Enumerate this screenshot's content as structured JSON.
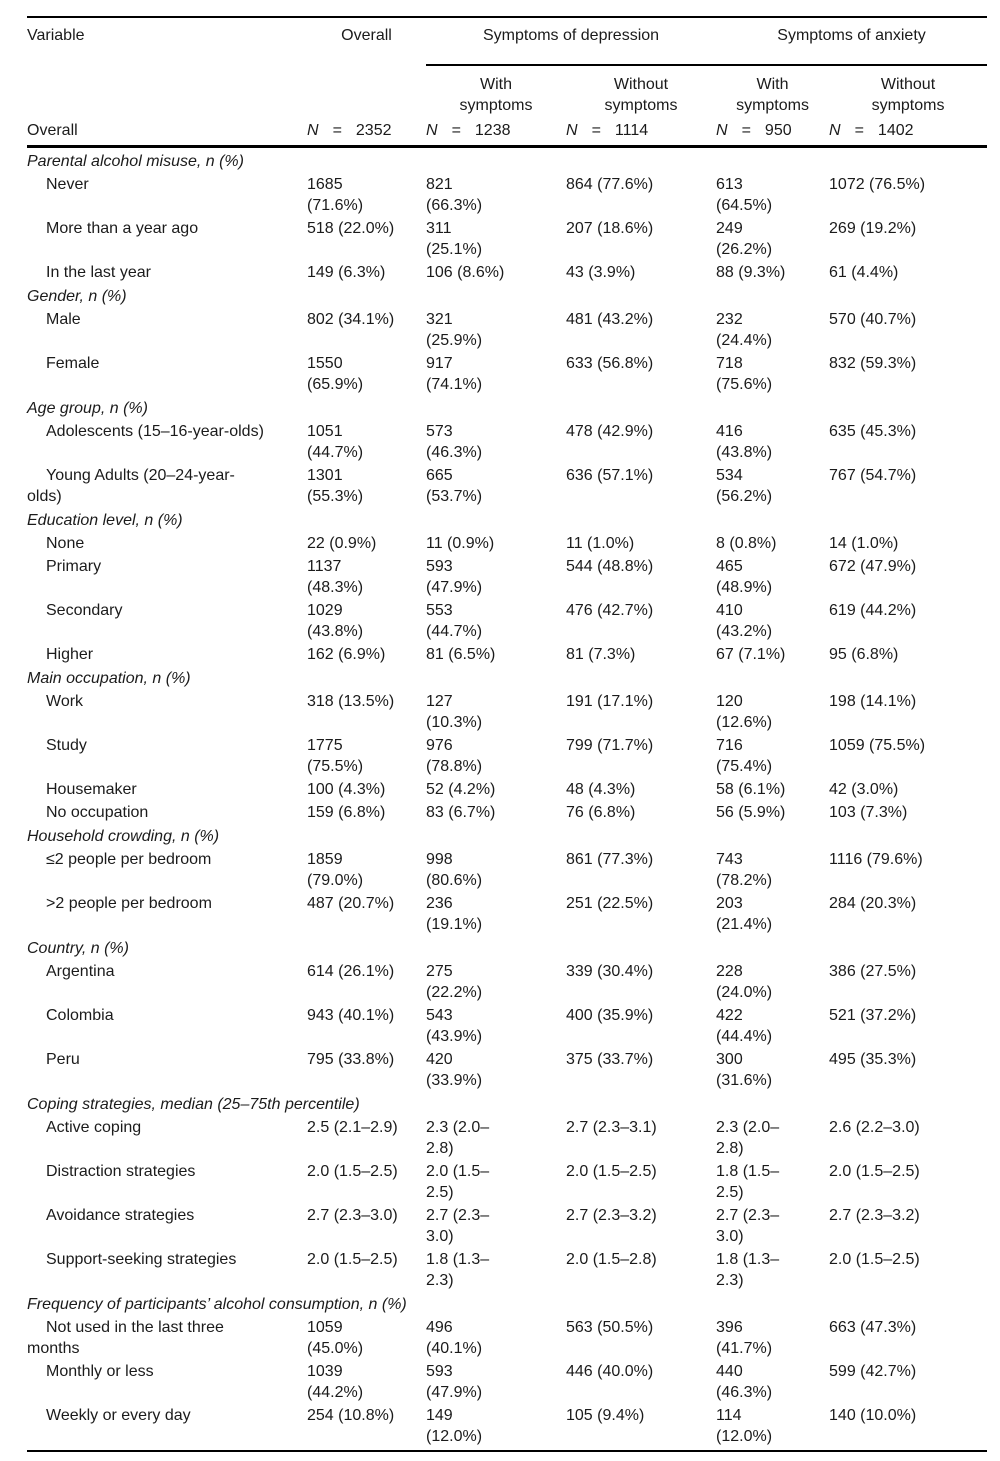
{
  "header": {
    "variable": "Variable",
    "overall": "Overall",
    "groups": [
      {
        "label": "Symptoms of depression",
        "sub": [
          "With\nsymptoms",
          "Without\nsymptoms"
        ]
      },
      {
        "label": "Symptoms of anxiety",
        "sub": [
          "With\nsymptoms",
          "Without\nsymptoms"
        ]
      }
    ]
  },
  "overall_row": {
    "label": "Overall",
    "n_symbol": "N",
    "eq": "=",
    "values": [
      "2352",
      "1238",
      "1114",
      "950",
      "1402"
    ]
  },
  "sections": [
    {
      "header": "Parental alcohol misuse, n (%)",
      "rows": [
        {
          "label": "Never",
          "cells": [
            "1685\n(71.6%)",
            "821\n(66.3%)",
            "864 (77.6%)",
            "613\n(64.5%)",
            "1072 (76.5%)"
          ]
        },
        {
          "label": "More than a year ago",
          "cells": [
            "518 (22.0%)",
            "311\n(25.1%)",
            "207 (18.6%)",
            "249\n(26.2%)",
            "269 (19.2%)"
          ]
        },
        {
          "label": "In the last year",
          "cells": [
            "149 (6.3%)",
            "106 (8.6%)",
            "43 (3.9%)",
            "88 (9.3%)",
            "61 (4.4%)"
          ]
        }
      ]
    },
    {
      "header": "Gender, n (%)",
      "rows": [
        {
          "label": "Male",
          "cells": [
            "802 (34.1%)",
            "321\n(25.9%)",
            "481 (43.2%)",
            "232\n(24.4%)",
            "570 (40.7%)"
          ]
        },
        {
          "label": "Female",
          "cells": [
            "1550\n(65.9%)",
            "917\n(74.1%)",
            "633 (56.8%)",
            "718\n(75.6%)",
            "832 (59.3%)"
          ]
        }
      ]
    },
    {
      "header": "Age group, n (%)",
      "rows": [
        {
          "label": "Adolescents (15–16-year-olds)",
          "cells": [
            "1051\n(44.7%)",
            "573\n(46.3%)",
            "478 (42.9%)",
            "416\n(43.8%)",
            "635 (45.3%)"
          ]
        },
        {
          "label": "Young Adults (20–24-year-\nolds)",
          "cells": [
            "1301\n(55.3%)",
            "665\n(53.7%)",
            "636 (57.1%)",
            "534\n(56.2%)",
            "767 (54.7%)"
          ]
        }
      ]
    },
    {
      "header": "Education level, n (%)",
      "rows": [
        {
          "label": "None",
          "cells": [
            "22 (0.9%)",
            "11 (0.9%)",
            "11 (1.0%)",
            "8 (0.8%)",
            "14 (1.0%)"
          ]
        },
        {
          "label": "Primary",
          "cells": [
            "1137\n(48.3%)",
            "593\n(47.9%)",
            "544 (48.8%)",
            "465\n(48.9%)",
            "672 (47.9%)"
          ]
        },
        {
          "label": "Secondary",
          "cells": [
            "1029\n(43.8%)",
            "553\n(44.7%)",
            "476 (42.7%)",
            "410\n(43.2%)",
            "619 (44.2%)"
          ]
        },
        {
          "label": "Higher",
          "cells": [
            "162 (6.9%)",
            "81 (6.5%)",
            "81 (7.3%)",
            "67 (7.1%)",
            "95 (6.8%)"
          ]
        }
      ]
    },
    {
      "header": "Main occupation, n (%)",
      "rows": [
        {
          "label": "Work",
          "cells": [
            "318 (13.5%)",
            "127\n(10.3%)",
            "191 (17.1%)",
            "120\n(12.6%)",
            "198 (14.1%)"
          ]
        },
        {
          "label": "Study",
          "cells": [
            "1775\n(75.5%)",
            "976\n(78.8%)",
            "799 (71.7%)",
            "716\n(75.4%)",
            "1059 (75.5%)"
          ]
        },
        {
          "label": "Housemaker",
          "cells": [
            "100 (4.3%)",
            "52 (4.2%)",
            "48 (4.3%)",
            "58 (6.1%)",
            "42 (3.0%)"
          ]
        },
        {
          "label": "No occupation",
          "cells": [
            "159 (6.8%)",
            "83 (6.7%)",
            "76 (6.8%)",
            "56 (5.9%)",
            "103 (7.3%)"
          ]
        }
      ]
    },
    {
      "header": "Household crowding, n (%)",
      "rows": [
        {
          "label": "≤2 people per bedroom",
          "cells": [
            "1859\n(79.0%)",
            "998\n(80.6%)",
            "861 (77.3%)",
            "743\n(78.2%)",
            "1116 (79.6%)"
          ]
        },
        {
          "label": ">2 people per bedroom",
          "cells": [
            "487 (20.7%)",
            "236\n(19.1%)",
            "251 (22.5%)",
            "203\n(21.4%)",
            "284 (20.3%)"
          ]
        }
      ]
    },
    {
      "header": "Country, n (%)",
      "rows": [
        {
          "label": "Argentina",
          "cells": [
            "614 (26.1%)",
            "275\n(22.2%)",
            "339 (30.4%)",
            "228\n(24.0%)",
            "386 (27.5%)"
          ]
        },
        {
          "label": "Colombia",
          "cells": [
            "943 (40.1%)",
            "543\n(43.9%)",
            "400 (35.9%)",
            "422\n(44.4%)",
            "521 (37.2%)"
          ]
        },
        {
          "label": "Peru",
          "cells": [
            "795 (33.8%)",
            "420\n(33.9%)",
            "375 (33.7%)",
            "300\n(31.6%)",
            "495 (35.3%)"
          ]
        }
      ]
    },
    {
      "header": "Coping strategies, median (25–75th percentile)",
      "rows": [
        {
          "label": "Active coping",
          "cells": [
            "2.5 (2.1–2.9)",
            "2.3 (2.0–\n2.8)",
            "2.7 (2.3–3.1)",
            "2.3 (2.0–\n2.8)",
            "2.6 (2.2–3.0)"
          ]
        },
        {
          "label": "Distraction strategies",
          "cells": [
            "2.0 (1.5–2.5)",
            "2.0 (1.5–\n2.5)",
            "2.0 (1.5–2.5)",
            "1.8 (1.5–\n2.5)",
            "2.0 (1.5–2.5)"
          ]
        },
        {
          "label": "Avoidance strategies",
          "cells": [
            "2.7 (2.3–3.0)",
            "2.7 (2.3–\n3.0)",
            "2.7 (2.3–3.2)",
            "2.7 (2.3–\n3.0)",
            "2.7 (2.3–3.2)"
          ]
        },
        {
          "label": "Support-seeking strategies",
          "cells": [
            "2.0 (1.5–2.5)",
            "1.8 (1.3–\n2.3)",
            "2.0 (1.5–2.8)",
            "1.8 (1.3–\n2.3)",
            "2.0 (1.5–2.5)"
          ]
        }
      ]
    },
    {
      "header": "Frequency of participants’ alcohol consumption, n (%)",
      "rows": [
        {
          "label": "Not used in the last three\nmonths",
          "cells": [
            "1059\n(45.0%)",
            "496\n(40.1%)",
            "563 (50.5%)",
            "396\n(41.7%)",
            "663 (47.3%)"
          ]
        },
        {
          "label": "Monthly or less",
          "cells": [
            "1039\n(44.2%)",
            "593\n(47.9%)",
            "446 (40.0%)",
            "440\n(46.3%)",
            "599 (42.7%)"
          ]
        },
        {
          "label": "Weekly or every day",
          "cells": [
            "254 (10.8%)",
            "149\n(12.0%)",
            "105 (9.4%)",
            "114\n(12.0%)",
            "140 (10.0%)"
          ]
        }
      ]
    }
  ]
}
